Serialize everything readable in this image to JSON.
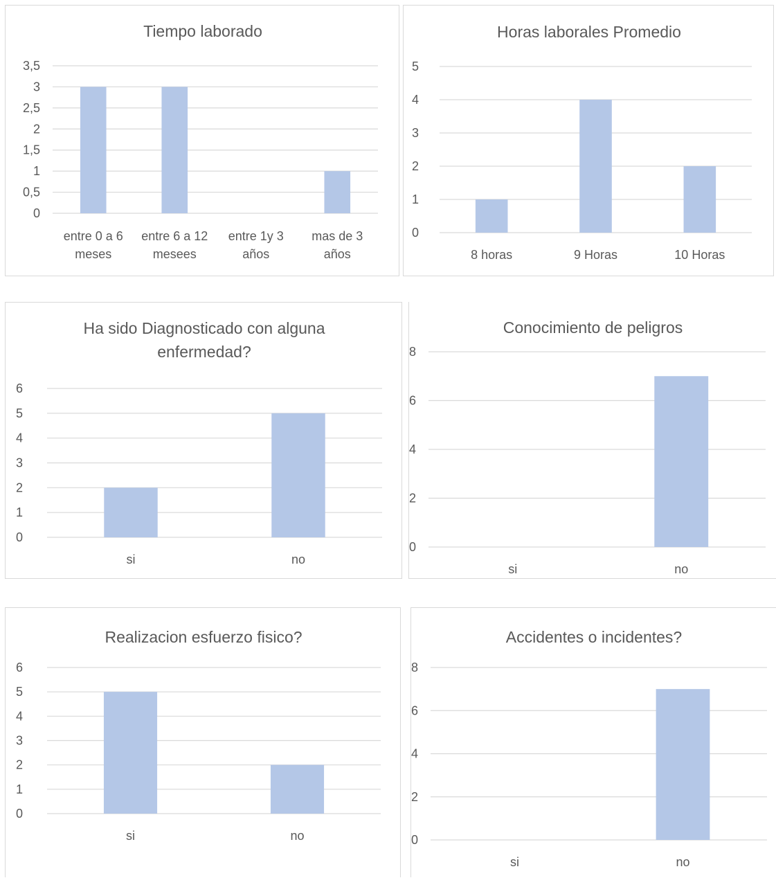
{
  "chart_data": [
    {
      "type": "bar",
      "title": [
        "Tiempo laborado"
      ],
      "categories": [
        [
          "entre 0 a 6",
          "meses"
        ],
        [
          "entre 6 a 12",
          "mesees"
        ],
        [
          "entre 1y 3",
          "años"
        ],
        [
          "mas de 3",
          "años"
        ]
      ],
      "values": [
        3,
        3,
        0,
        1
      ],
      "ylim": [
        0,
        3.5
      ],
      "yticks": [
        "0",
        "0,5",
        "1",
        "1,5",
        "2",
        "2,5",
        "3",
        "3,5"
      ],
      "xlabel": "",
      "ylabel": "",
      "grid": true,
      "color": "#b4c7e7"
    },
    {
      "type": "bar",
      "title": [
        "Horas laborales Promedio"
      ],
      "categories": [
        [
          "8 horas"
        ],
        [
          "9 Horas"
        ],
        [
          "10 Horas"
        ]
      ],
      "values": [
        1,
        4,
        2
      ],
      "ylim": [
        0,
        5
      ],
      "yticks": [
        "0",
        "1",
        "2",
        "3",
        "4",
        "5"
      ],
      "xlabel": "",
      "ylabel": "",
      "grid": true,
      "color": "#b4c7e7"
    },
    {
      "type": "bar",
      "title": [
        "Ha sido Diagnosticado con alguna",
        "enfermedad?"
      ],
      "categories": [
        [
          "si"
        ],
        [
          "no"
        ]
      ],
      "values": [
        2,
        5
      ],
      "ylim": [
        0,
        6
      ],
      "yticks": [
        "0",
        "1",
        "2",
        "3",
        "4",
        "5",
        "6"
      ],
      "xlabel": "",
      "ylabel": "",
      "grid": true,
      "color": "#b4c7e7"
    },
    {
      "type": "bar",
      "title": [
        "Conocimiento de peligros"
      ],
      "categories": [
        [
          "si"
        ],
        [
          "no"
        ]
      ],
      "values": [
        0,
        7
      ],
      "ylim": [
        0,
        8
      ],
      "yticks": [
        "0",
        "2",
        "4",
        "6",
        "8"
      ],
      "xlabel": "",
      "ylabel": "",
      "grid": true,
      "color": "#b4c7e7"
    },
    {
      "type": "bar",
      "title": [
        "Realizacion esfuerzo fisico?"
      ],
      "categories": [
        [
          "si"
        ],
        [
          "no"
        ]
      ],
      "values": [
        5,
        2
      ],
      "ylim": [
        0,
        6
      ],
      "yticks": [
        "0",
        "1",
        "2",
        "3",
        "4",
        "5",
        "6"
      ],
      "xlabel": "",
      "ylabel": "",
      "grid": true,
      "color": "#b4c7e7"
    },
    {
      "type": "bar",
      "title": [
        "Accidentes o incidentes?"
      ],
      "categories": [
        [
          "si"
        ],
        [
          "no"
        ]
      ],
      "values": [
        0,
        7
      ],
      "ylim": [
        0,
        8
      ],
      "yticks": [
        "0",
        "2",
        "4",
        "6",
        "8"
      ],
      "xlabel": "",
      "ylabel": "",
      "grid": true,
      "color": "#b4c7e7"
    }
  ]
}
